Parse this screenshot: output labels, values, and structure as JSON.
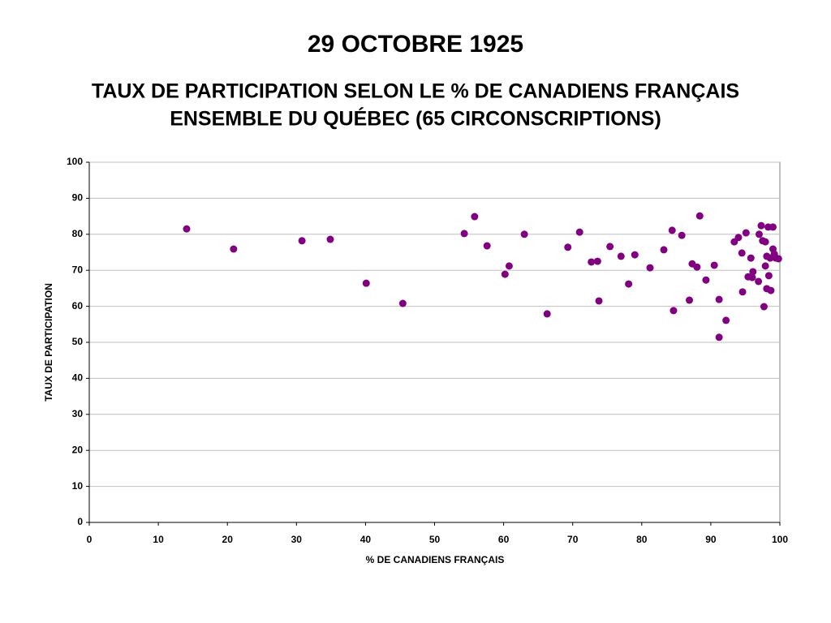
{
  "chart_data": {
    "type": "scatter",
    "title": "29 OCTOBRE 1925",
    "subtitle": [
      "TAUX DE PARTICIPATION SELON LE % DE CANADIENS FRANÇAIS",
      "ENSEMBLE DU QUÉBEC (65 CIRCONSCRIPTIONS)"
    ],
    "x_label": "% DE CANADIENS FRANÇAIS",
    "y_label": "TAUX DE PARTICIPATION",
    "color": "#800080",
    "grid": true,
    "xlim": [
      0,
      100
    ],
    "xticks": [
      0,
      10,
      20,
      30,
      40,
      50,
      60,
      70,
      80,
      90,
      100
    ],
    "ylim": [
      0,
      100
    ],
    "yticks": [
      0,
      10,
      20,
      30,
      40,
      50,
      60,
      70,
      80,
      90,
      100
    ],
    "x": [
      14.1,
      20.9,
      30.8,
      34.9,
      40.1,
      45.4,
      54.3,
      55.8,
      57.6,
      60.8,
      60.2,
      63.0,
      66.3,
      69.3,
      71.0,
      72.7,
      73.6,
      73.8,
      75.4,
      77.0,
      78.1,
      79.0,
      81.2,
      83.2,
      84.4,
      84.6,
      85.8,
      86.9,
      87.3,
      88.0,
      88.4,
      89.3,
      90.5,
      91.2,
      91.2,
      92.2,
      93.4,
      94.0,
      94.5,
      94.6,
      95.1,
      95.4,
      95.8,
      96.0,
      96.1,
      96.9,
      97.0,
      97.3,
      97.5,
      97.7,
      97.9,
      97.9,
      98.1,
      98.1,
      98.3,
      98.4,
      98.6,
      98.7,
      99.0,
      99.0,
      99.2,
      99.4,
      99.8
    ],
    "values": [
      81.5,
      75.9,
      78.2,
      78.6,
      66.4,
      60.8,
      80.2,
      84.9,
      76.8,
      71.2,
      68.9,
      80.0,
      57.9,
      76.4,
      80.6,
      72.3,
      72.5,
      61.5,
      76.6,
      73.9,
      66.2,
      74.3,
      70.7,
      75.7,
      81.1,
      58.8,
      79.7,
      61.7,
      71.8,
      70.9,
      85.1,
      67.3,
      71.4,
      61.9,
      51.4,
      56.1,
      77.9,
      79.1,
      74.8,
      64.0,
      80.4,
      68.2,
      73.4,
      68.0,
      69.6,
      66.9,
      80.0,
      82.4,
      78.2,
      59.9,
      77.9,
      71.2,
      64.9,
      73.9,
      82.0,
      68.5,
      73.4,
      64.4,
      82.0,
      75.9,
      74.5,
      73.4,
      73.2
    ]
  }
}
